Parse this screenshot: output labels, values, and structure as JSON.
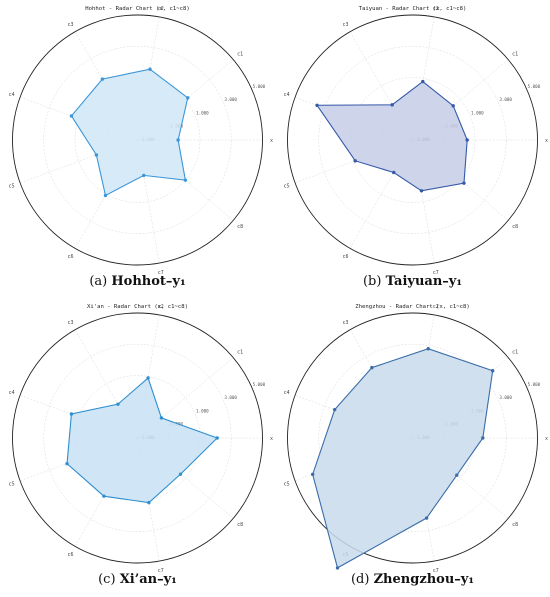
{
  "chart_data": [
    {
      "type": "radar",
      "title": "Hohhot - Radar Chart (x, c1~c8)",
      "caption_letter": "(a)",
      "caption_name": "Hohhot–y₁",
      "axes": [
        "x",
        "c1",
        "c2",
        "c3",
        "c4",
        "c5",
        "c6",
        "c7",
        "c8"
      ],
      "rlim": [
        -3,
        5
      ],
      "rticks": [
        -3,
        -1,
        1,
        3,
        5
      ],
      "rtick_labels": [
        "-3.000",
        "-1.000",
        "1.000",
        "3.000",
        "5.000"
      ],
      "grid": true,
      "color": "#3c96d8",
      "fill": "#cfe6f7",
      "values": [
        -0.4,
        1.2,
        1.6,
        1.5,
        1.5,
        -0.2,
        1.1,
        -0.7,
        1.0
      ]
    },
    {
      "type": "radar",
      "title": "Taiyuan - Radar Chart (x, c1~c8)",
      "caption_letter": "(b)",
      "caption_name": "Taiyuan–y₁",
      "axes": [
        "x",
        "c1",
        "c2",
        "c3",
        "c4",
        "c5",
        "c6",
        "c7",
        "c8"
      ],
      "rlim": [
        -3,
        5
      ],
      "rticks": [
        -3,
        -1,
        1,
        3,
        5
      ],
      "rtick_labels": [
        "-3.000",
        "-1.000",
        "1.000",
        "3.000",
        "5.000"
      ],
      "grid": true,
      "color": "#3559a8",
      "fill": "#c5cde6",
      "values": [
        0.5,
        0.4,
        0.8,
        -0.4,
        3.5,
        0.9,
        -0.6,
        0.3,
        1.3
      ]
    },
    {
      "type": "radar",
      "title": "Xi'an - Radar Chart (x, c1~c8)",
      "caption_letter": "(c)",
      "caption_name": "Xi’an–y₁",
      "axes": [
        "x",
        "c1",
        "c2",
        "c3",
        "c4",
        "c5",
        "c6",
        "c7",
        "c8"
      ],
      "rlim": [
        -3,
        5
      ],
      "rticks": [
        -3,
        -1,
        1,
        3,
        5
      ],
      "rtick_labels": [
        "-3.000",
        "-1.000",
        "1.000",
        "3.000",
        "5.000"
      ],
      "grid": true,
      "color": "#2f8fcf",
      "fill": "#c8e0f3",
      "values": [
        2.1,
        -1.0,
        0.9,
        -0.5,
        1.5,
        1.8,
        1.3,
        1.2,
        0.6
      ]
    },
    {
      "type": "radar",
      "title": "Zhengzhou - Radar Chart (x, c1~c8)",
      "caption_letter": "(d)",
      "caption_name": "Zhengzhou–y₁",
      "axes": [
        "x",
        "c1",
        "c2",
        "c3",
        "c4",
        "c5",
        "c6",
        "c7",
        "c8"
      ],
      "rlim": [
        -3,
        5
      ],
      "rticks": [
        -3,
        -1,
        1,
        3,
        5
      ],
      "rtick_labels": [
        "-3.000",
        "-1.000",
        "1.000",
        "3.000",
        "5.000"
      ],
      "grid": true,
      "color": "#3a6da8",
      "fill": "#c9dbec",
      "values": [
        1.5,
        3.7,
        2.8,
        2.2,
        2.3,
        3.8,
        6.6,
        2.2,
        0.7
      ]
    }
  ]
}
